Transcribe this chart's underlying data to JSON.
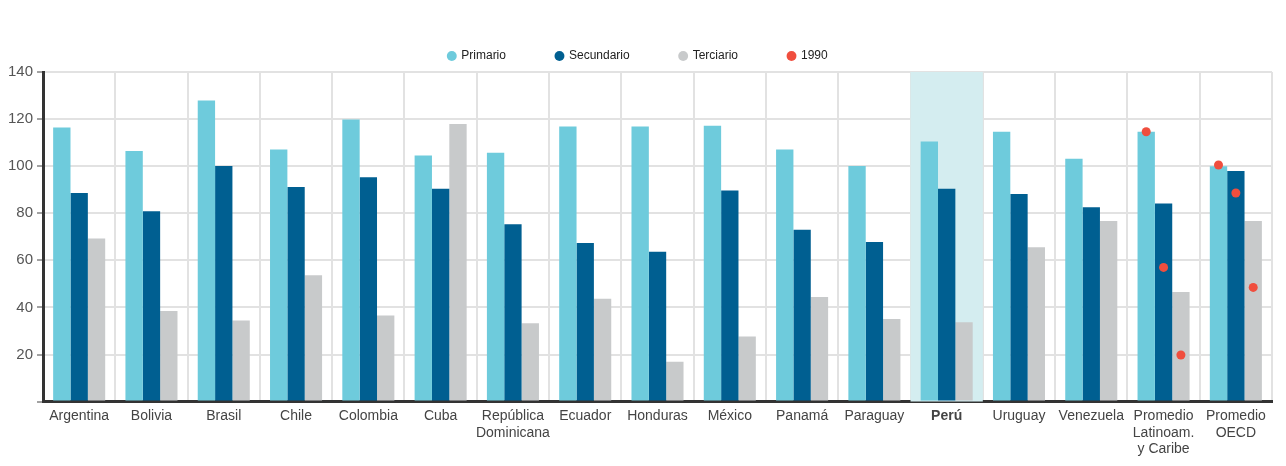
{
  "chart_data": {
    "type": "bar",
    "categories": [
      "Argentina",
      "Bolivia",
      "Brasil",
      "Chile",
      "Colombia",
      "Cuba",
      "República Dominicana",
      "Ecuador",
      "Honduras",
      "México",
      "Panamá",
      "Paraguay",
      "Perú",
      "Uruguay",
      "Venezuela",
      "Promedio Latinoam. y Caribe",
      "Promedio OECD"
    ],
    "series": [
      {
        "name": "Primario",
        "color": "#6ecbdc",
        "values": [
          116.4,
          106.4,
          127.9,
          107.1,
          119.8,
          104.5,
          105.7,
          116.8,
          116.8,
          117.2,
          107.1,
          100.1,
          110.5,
          114.6,
          103.1,
          114.6,
          100.0
        ]
      },
      {
        "name": "Secundario",
        "color": "#005f91",
        "values": [
          88.6,
          80.8,
          100.1,
          91.2,
          95.3,
          90.4,
          75.3,
          67.4,
          63.7,
          89.7,
          73.0,
          67.8,
          90.4,
          88.2,
          82.6,
          84.1,
          97.9
        ]
      },
      {
        "name": "Terciario",
        "color": "#c8cacb",
        "values": [
          69.3,
          38.5,
          34.4,
          53.7,
          36.6,
          117.9,
          33.3,
          43.7,
          16.9,
          27.7,
          44.4,
          35.1,
          33.7,
          65.6,
          76.7,
          46.6,
          76.7
        ]
      },
      {
        "name": "1990",
        "type": "scatter",
        "color": "#f04e3e",
        "values": [
          null,
          null,
          null,
          null,
          null,
          null,
          null,
          null,
          null,
          null,
          null,
          null,
          null,
          null,
          null,
          114.6,
          100.5
        ]
      },
      {
        "type": "scatter",
        "color": "#f04e3e",
        "values": [
          null,
          null,
          null,
          null,
          null,
          null,
          null,
          null,
          null,
          null,
          null,
          null,
          null,
          null,
          null,
          57.0,
          88.6
        ]
      },
      {
        "type": "scatter",
        "color": "#f04e3e",
        "values": [
          null,
          null,
          null,
          null,
          null,
          null,
          null,
          null,
          null,
          null,
          null,
          null,
          null,
          null,
          null,
          19.8,
          48.5
        ]
      }
    ],
    "ylim": [
      0,
      140
    ],
    "yticks": [
      {
        "value": 0,
        "label": null
      },
      20,
      40,
      60,
      80,
      100,
      120,
      140
    ],
    "bands": [
      {
        "axis": "x",
        "from": "Perú",
        "to": "Perú",
        "color": "#d4edf0"
      }
    ],
    "grid": true,
    "legend": "top",
    "marker": "circle"
  }
}
